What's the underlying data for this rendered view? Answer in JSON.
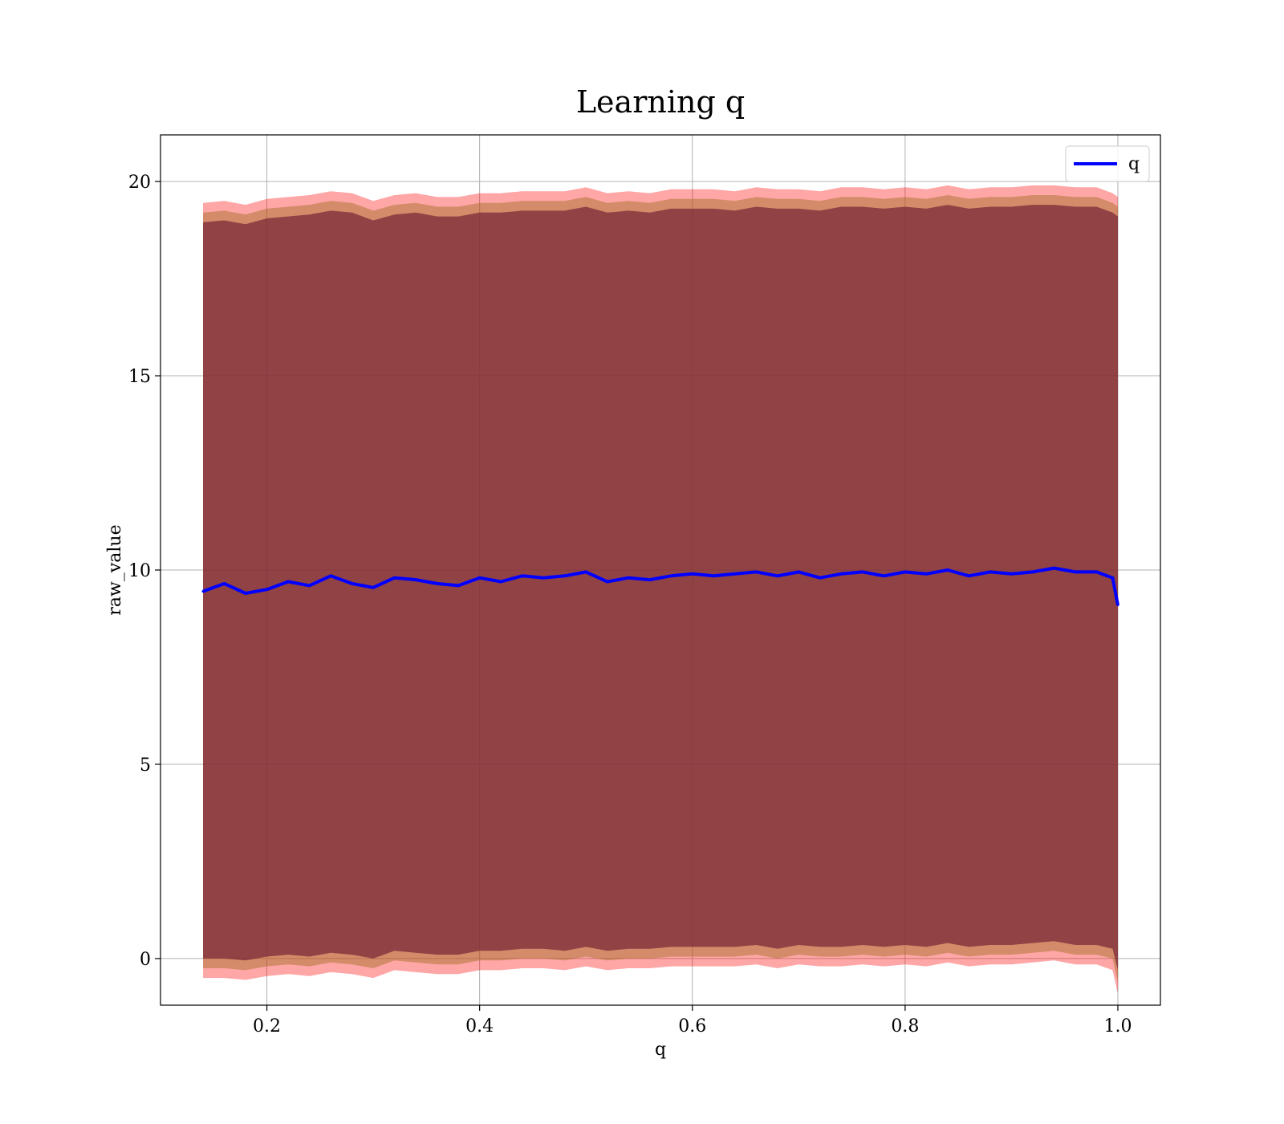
{
  "chart_data": {
    "type": "line",
    "title": "Learning q",
    "xlabel": "q",
    "ylabel": "raw_value",
    "xlim": [
      0.1,
      1.04
    ],
    "ylim": [
      -1.2,
      21.2
    ],
    "xticks": [
      0.2,
      0.4,
      0.6,
      0.8,
      1.0
    ],
    "xtick_labels": [
      "0.2",
      "0.4",
      "0.6",
      "0.8",
      "1.0"
    ],
    "yticks": [
      0,
      5,
      10,
      15,
      20
    ],
    "ytick_labels": [
      "0",
      "5",
      "10",
      "15",
      "20"
    ],
    "grid": true,
    "legend": {
      "position": "top-right",
      "entries": [
        "q"
      ]
    },
    "colors": {
      "line": "#0000ff",
      "outer_band": "#ff0000",
      "middle_band": "#a06a1e",
      "inner_band": "#7a2a3a"
    },
    "x": [
      0.14,
      0.16,
      0.18,
      0.2,
      0.22,
      0.24,
      0.26,
      0.28,
      0.3,
      0.32,
      0.34,
      0.36,
      0.38,
      0.4,
      0.42,
      0.44,
      0.46,
      0.48,
      0.5,
      0.52,
      0.54,
      0.56,
      0.58,
      0.6,
      0.62,
      0.64,
      0.66,
      0.68,
      0.7,
      0.72,
      0.74,
      0.76,
      0.78,
      0.8,
      0.82,
      0.84,
      0.86,
      0.88,
      0.9,
      0.92,
      0.94,
      0.96,
      0.98,
      0.995,
      1.0
    ],
    "series": [
      {
        "name": "q",
        "values": [
          9.45,
          9.65,
          9.4,
          9.5,
          9.7,
          9.6,
          9.85,
          9.65,
          9.55,
          9.8,
          9.75,
          9.65,
          9.6,
          9.8,
          9.7,
          9.85,
          9.8,
          9.85,
          9.95,
          9.7,
          9.8,
          9.75,
          9.85,
          9.9,
          9.85,
          9.9,
          9.95,
          9.85,
          9.95,
          9.8,
          9.9,
          9.95,
          9.85,
          9.95,
          9.9,
          10.0,
          9.85,
          9.95,
          9.9,
          9.95,
          10.05,
          9.95,
          9.95,
          9.8,
          9.1
        ]
      }
    ],
    "bands": [
      {
        "lower": [
          -0.5,
          -0.5,
          -0.55,
          -0.45,
          -0.4,
          -0.45,
          -0.35,
          -0.4,
          -0.5,
          -0.3,
          -0.35,
          -0.4,
          -0.4,
          -0.3,
          -0.3,
          -0.25,
          -0.25,
          -0.3,
          -0.2,
          -0.3,
          -0.25,
          -0.25,
          -0.2,
          -0.2,
          -0.2,
          -0.2,
          -0.15,
          -0.25,
          -0.15,
          -0.2,
          -0.2,
          -0.15,
          -0.2,
          -0.15,
          -0.2,
          -0.1,
          -0.2,
          -0.15,
          -0.15,
          -0.1,
          -0.05,
          -0.15,
          -0.15,
          -0.3,
          -0.9
        ],
        "upper": [
          19.45,
          19.5,
          19.4,
          19.55,
          19.6,
          19.65,
          19.75,
          19.7,
          19.5,
          19.65,
          19.7,
          19.6,
          19.6,
          19.7,
          19.7,
          19.75,
          19.75,
          19.75,
          19.85,
          19.7,
          19.75,
          19.7,
          19.8,
          19.8,
          19.8,
          19.75,
          19.85,
          19.8,
          19.8,
          19.75,
          19.85,
          19.85,
          19.8,
          19.85,
          19.8,
          19.9,
          19.8,
          19.85,
          19.85,
          19.9,
          19.9,
          19.85,
          19.85,
          19.7,
          19.6
        ]
      },
      {
        "lower": [
          -0.25,
          -0.25,
          -0.3,
          -0.2,
          -0.15,
          -0.2,
          -0.1,
          -0.15,
          -0.25,
          -0.05,
          -0.1,
          -0.15,
          -0.15,
          -0.05,
          -0.05,
          0.0,
          0.0,
          -0.05,
          0.05,
          -0.05,
          0.0,
          0.0,
          0.05,
          0.05,
          0.05,
          0.05,
          0.1,
          0.0,
          0.1,
          0.05,
          0.05,
          0.1,
          0.05,
          0.1,
          0.05,
          0.15,
          0.05,
          0.1,
          0.1,
          0.15,
          0.2,
          0.1,
          0.1,
          0.0,
          -0.6
        ],
        "upper": [
          19.2,
          19.25,
          19.15,
          19.3,
          19.35,
          19.4,
          19.5,
          19.45,
          19.25,
          19.4,
          19.45,
          19.35,
          19.35,
          19.45,
          19.45,
          19.5,
          19.5,
          19.5,
          19.6,
          19.45,
          19.5,
          19.45,
          19.55,
          19.55,
          19.55,
          19.5,
          19.6,
          19.55,
          19.55,
          19.5,
          19.6,
          19.6,
          19.55,
          19.6,
          19.55,
          19.65,
          19.55,
          19.6,
          19.6,
          19.65,
          19.65,
          19.6,
          19.6,
          19.45,
          19.35
        ]
      },
      {
        "lower": [
          0.0,
          0.0,
          -0.05,
          0.05,
          0.1,
          0.05,
          0.15,
          0.1,
          0.0,
          0.2,
          0.15,
          0.1,
          0.1,
          0.2,
          0.2,
          0.25,
          0.25,
          0.2,
          0.3,
          0.2,
          0.25,
          0.25,
          0.3,
          0.3,
          0.3,
          0.3,
          0.35,
          0.25,
          0.35,
          0.3,
          0.3,
          0.35,
          0.3,
          0.35,
          0.3,
          0.4,
          0.3,
          0.35,
          0.35,
          0.4,
          0.45,
          0.35,
          0.35,
          0.25,
          -0.3
        ],
        "upper": [
          18.95,
          19.0,
          18.9,
          19.05,
          19.1,
          19.15,
          19.25,
          19.2,
          19.0,
          19.15,
          19.2,
          19.1,
          19.1,
          19.2,
          19.2,
          19.25,
          19.25,
          19.25,
          19.35,
          19.2,
          19.25,
          19.2,
          19.3,
          19.3,
          19.3,
          19.25,
          19.35,
          19.3,
          19.3,
          19.25,
          19.35,
          19.35,
          19.3,
          19.35,
          19.3,
          19.4,
          19.3,
          19.35,
          19.35,
          19.4,
          19.4,
          19.35,
          19.35,
          19.2,
          19.1
        ]
      }
    ]
  }
}
